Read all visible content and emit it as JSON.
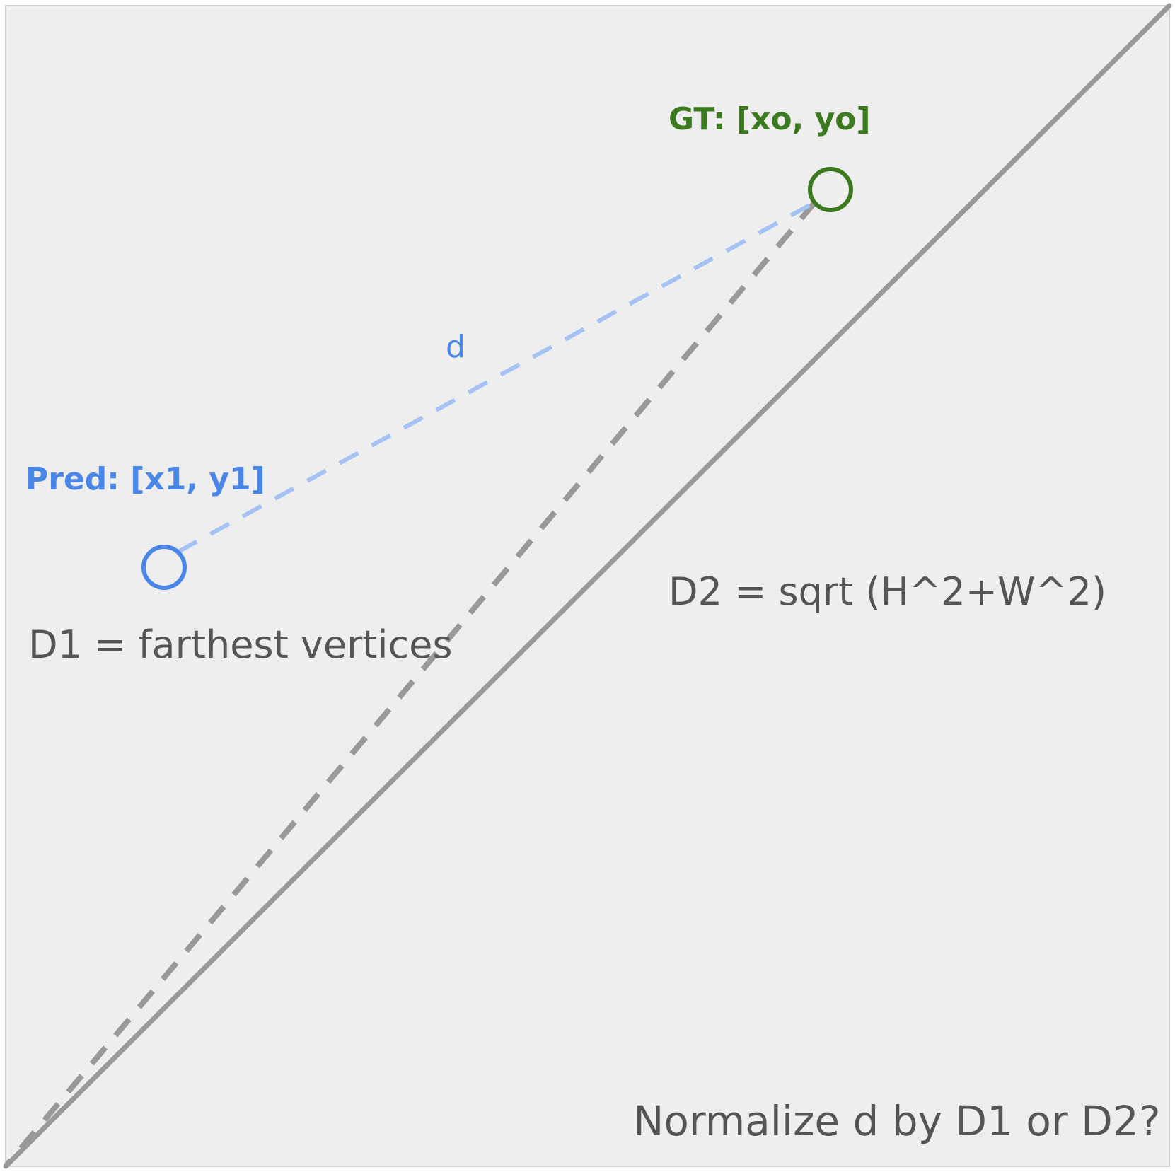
{
  "diagram": {
    "labels": {
      "gt": "GT: [xo, yo]",
      "pred": "Pred: [x1, y1]",
      "d": "d",
      "d1": "D1 = farthest vertices",
      "d2": "D2 = sqrt (H^2+W^2)",
      "question": "Normalize d by D1 or D2?"
    },
    "colors": {
      "background": "#eeeeee",
      "frame": "#cfcfcf",
      "gt": "#3b7a1e",
      "pred": "#4a86e8",
      "d_line": "#a4c2f4",
      "gray_line": "#999999",
      "text": "#555555"
    }
  }
}
